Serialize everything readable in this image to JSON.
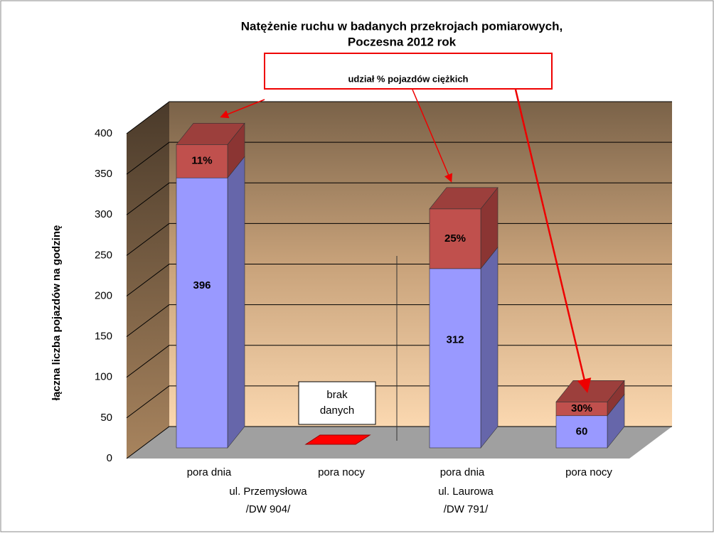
{
  "chart_data": {
    "type": "bar",
    "title": "Natężenie ruchu w badanych przekrojach pomiarowych,",
    "subtitle": "Poczesna 2012 rok",
    "y_label": "łączna liczba pojazdów na godzinę",
    "annotation": "udział % pojazdów ciężkich",
    "no_data": [
      "brak",
      "danych"
    ],
    "categories": [
      "pora dnia",
      "pora nocy",
      "pora dnia",
      "pora nocy"
    ],
    "groups": [
      [
        "ul. Przemysłowa",
        "/DW 904/"
      ],
      [
        "ul. Laurowa",
        "/DW 791/"
      ]
    ],
    "totals": [
      396,
      null,
      312,
      60
    ],
    "heavy_share": [
      11,
      null,
      25,
      30
    ],
    "value_labels": [
      "11%",
      null,
      "25%",
      "30%"
    ],
    "colors": {
      "light": "#9999ff",
      "heavy": "#c0504d"
    },
    "ylim": [
      0,
      400
    ],
    "yticks": [
      0,
      50,
      100,
      150,
      200,
      250,
      300,
      350,
      400
    ],
    "grid": true
  }
}
